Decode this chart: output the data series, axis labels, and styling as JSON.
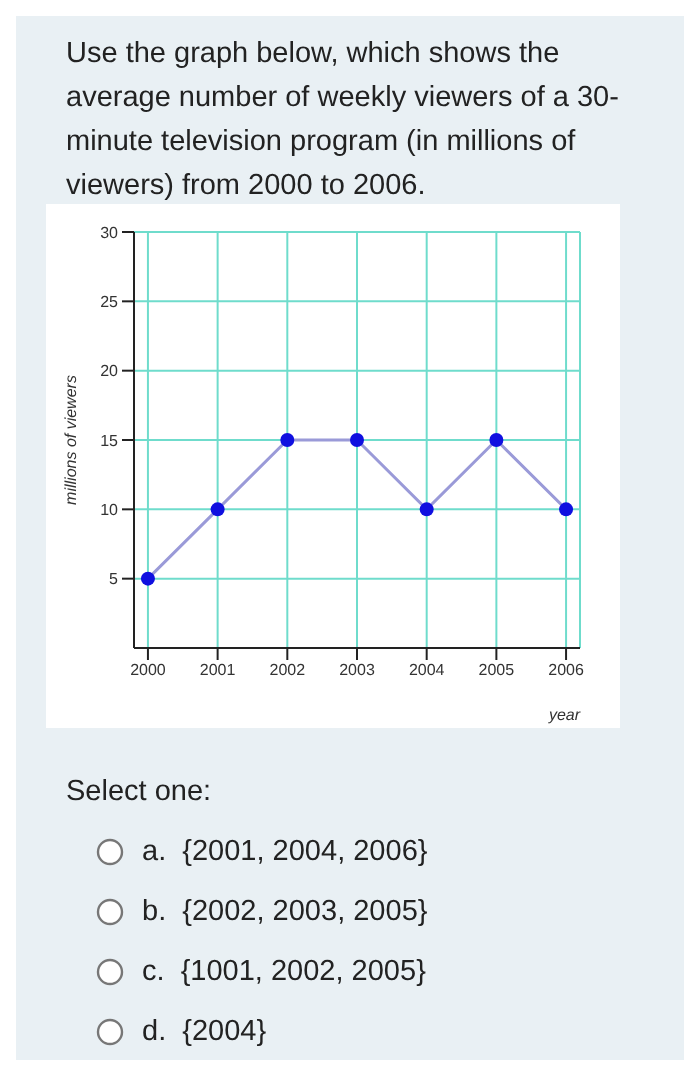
{
  "chart_data": {
    "type": "line",
    "title": "Use the graph below, which shows the average number of weekly viewers of a 30-minute television program (in millions of viewers) from 2000 to 2006.",
    "xlabel": "year",
    "ylabel": "millions of viewers",
    "x": [
      2000,
      2001,
      2002,
      2003,
      2004,
      2005,
      2006
    ],
    "series": [
      {
        "color": "#1010e0",
        "values": [
          5,
          10,
          15,
          15,
          10,
          15,
          10
        ]
      }
    ],
    "xlim": [
      1999.8,
      2006.2
    ],
    "xticks": [
      2000,
      2001,
      2002,
      2003,
      2004,
      2005,
      2006
    ],
    "ylim": [
      0,
      30
    ],
    "yticks": [
      5,
      10,
      15,
      20,
      25,
      30
    ],
    "grid": true,
    "marker": "circle",
    "line_style": "solid",
    "annotations": [
      "Select one:",
      "a.  {2001, 2004, 2006}",
      "b.  {2002, 2003, 2005}",
      "c.  {1001, 2002, 2005}",
      "d.  {2004}"
    ]
  }
}
